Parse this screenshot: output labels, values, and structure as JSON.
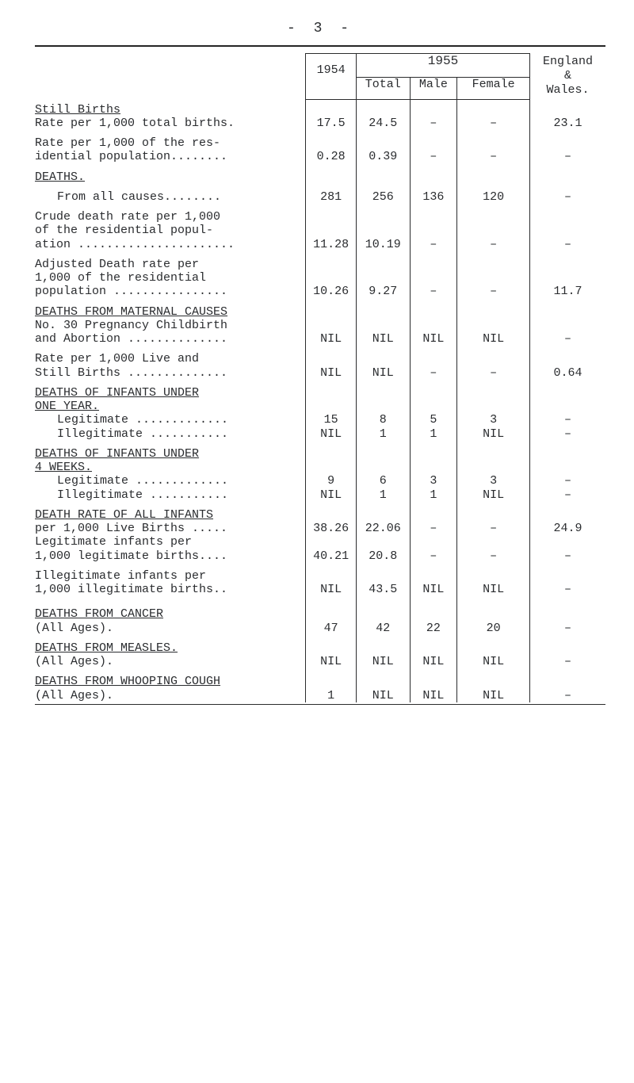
{
  "page_number": "- 3 -",
  "header": {
    "col_1954": "1954",
    "year_1955": "1955",
    "col_total": "Total",
    "col_male": "Male",
    "col_female": "Female",
    "col_england": "England\n&\nWales."
  },
  "rows": [
    {
      "type": "section",
      "label": "Still Births"
    },
    {
      "type": "data",
      "label": "Rate per 1,000 total births.",
      "c": [
        "17.5",
        "24.5",
        "–",
        "–",
        "23.1"
      ]
    },
    {
      "type": "spacer"
    },
    {
      "type": "data",
      "label": "Rate per 1,000 of the res-",
      "c": [
        "",
        "",
        "",
        "",
        ""
      ]
    },
    {
      "type": "data",
      "label": "idential population........",
      "c": [
        "0.28",
        "0.39",
        "–",
        "–",
        "–"
      ]
    },
    {
      "type": "spacer"
    },
    {
      "type": "section",
      "label": "DEATHS."
    },
    {
      "type": "spacer"
    },
    {
      "type": "data",
      "label": "From all causes........",
      "indent": true,
      "c": [
        "281",
        "256",
        "136",
        "120",
        "–"
      ]
    },
    {
      "type": "spacer"
    },
    {
      "type": "data",
      "label": "Crude death rate per 1,000",
      "c": [
        "",
        "",
        "",
        "",
        ""
      ]
    },
    {
      "type": "data",
      "label": "of the residential popul-",
      "c": [
        "",
        "",
        "",
        "",
        ""
      ]
    },
    {
      "type": "data",
      "label": "ation ......................",
      "c": [
        "11.28",
        "10.19",
        "–",
        "–",
        "–"
      ]
    },
    {
      "type": "spacer"
    },
    {
      "type": "data",
      "label": "Adjusted Death rate per",
      "c": [
        "",
        "",
        "",
        "",
        ""
      ]
    },
    {
      "type": "data",
      "label": "1,000 of the residential",
      "c": [
        "",
        "",
        "",
        "",
        ""
      ]
    },
    {
      "type": "data",
      "label": "population ................",
      "c": [
        "10.26",
        "9.27",
        "–",
        "–",
        "11.7"
      ]
    },
    {
      "type": "spacer"
    },
    {
      "type": "section",
      "label": "DEATHS FROM MATERNAL CAUSES"
    },
    {
      "type": "data",
      "label": "No. 30 Pregnancy Childbirth",
      "c": [
        "",
        "",
        "",
        "",
        ""
      ]
    },
    {
      "type": "data",
      "label": "and Abortion ..............",
      "c": [
        "NIL",
        "NIL",
        "NIL",
        "NIL",
        "–"
      ]
    },
    {
      "type": "spacer"
    },
    {
      "type": "data",
      "label": "Rate per 1,000 Live and",
      "c": [
        "",
        "",
        "",
        "",
        ""
      ]
    },
    {
      "type": "data",
      "label": "Still Births ..............",
      "c": [
        "NIL",
        "NIL",
        "–",
        "–",
        "0.64"
      ]
    },
    {
      "type": "spacer"
    },
    {
      "type": "section",
      "label": "DEATHS OF INFANTS UNDER"
    },
    {
      "type": "section",
      "label": "ONE YEAR."
    },
    {
      "type": "data",
      "label": "Legitimate .............",
      "indent": true,
      "c": [
        "15",
        "8",
        "5",
        "3",
        "–"
      ]
    },
    {
      "type": "data",
      "label": "Illegitimate ...........",
      "indent": true,
      "c": [
        "NIL",
        "1",
        "1",
        "NIL",
        "–"
      ]
    },
    {
      "type": "spacer"
    },
    {
      "type": "section",
      "label": "DEATHS OF INFANTS UNDER"
    },
    {
      "type": "section",
      "label": "4 WEEKS."
    },
    {
      "type": "data",
      "label": "Legitimate .............",
      "indent": true,
      "c": [
        "9",
        "6",
        "3",
        "3",
        "–"
      ]
    },
    {
      "type": "data",
      "label": "Illegitimate ...........",
      "indent": true,
      "c": [
        "NIL",
        "1",
        "1",
        "NIL",
        "–"
      ]
    },
    {
      "type": "spacer"
    },
    {
      "type": "section",
      "label": "DEATH RATE OF ALL INFANTS"
    },
    {
      "type": "data",
      "label": "per 1,000 Live Births .....",
      "c": [
        "38.26",
        "22.06",
        "–",
        "–",
        "24.9"
      ]
    },
    {
      "type": "data",
      "label": "Legitimate infants per",
      "c": [
        "",
        "",
        "",
        "",
        ""
      ]
    },
    {
      "type": "data",
      "label": "1,000 legitimate births....",
      "c": [
        "40.21",
        "20.8",
        "–",
        "–",
        "–"
      ]
    },
    {
      "type": "spacer"
    },
    {
      "type": "data",
      "label": "Illegitimate infants per",
      "c": [
        "",
        "",
        "",
        "",
        ""
      ]
    },
    {
      "type": "data",
      "label": "1,000 illegitimate births..",
      "c": [
        "NIL",
        "43.5",
        "NIL",
        "NIL",
        "–"
      ]
    },
    {
      "type": "bigspacer"
    },
    {
      "type": "section",
      "label": "DEATHS FROM CANCER"
    },
    {
      "type": "data",
      "label": "(All Ages).",
      "c": [
        "47",
        "42",
        "22",
        "20",
        "–"
      ]
    },
    {
      "type": "spacer"
    },
    {
      "type": "section",
      "label": "DEATHS FROM MEASLES."
    },
    {
      "type": "data",
      "label": "(All Ages).",
      "c": [
        "NIL",
        "NIL",
        "NIL",
        "NIL",
        "–"
      ]
    },
    {
      "type": "spacer"
    },
    {
      "type": "section",
      "label": "DEATHS FROM WHOOPING COUGH"
    },
    {
      "type": "data",
      "label": "(All Ages).",
      "c": [
        "1",
        "NIL",
        "NIL",
        "NIL",
        "–"
      ]
    }
  ]
}
